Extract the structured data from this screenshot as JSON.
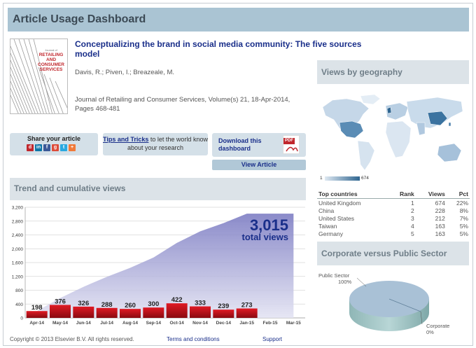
{
  "header": {
    "title": "Article Usage Dashboard"
  },
  "article": {
    "title": "Conceptualizing the brand in social media community: The five sources model",
    "authors": "Davis, R.; Piven, I.; Breazeale, M.",
    "journal": "Journal of Retailing and Consumer Services, Volume(s) 21, 18-Apr-2014, Pages 468-481",
    "cover_text_line1": "Journal of",
    "cover_text_line2": "RETAILING AND CONSUMER SERVICES"
  },
  "share": {
    "label": "Share your article",
    "icons": [
      "delicious-icon",
      "linkedin-icon",
      "facebook-icon",
      "googleplus-icon",
      "twitter-icon",
      "more-share-icon"
    ]
  },
  "tips": {
    "link": "Tips and Tricks",
    "rest": " to let the world know about your research"
  },
  "download": {
    "label": "Download this dashboard",
    "pdf_tag": "PDF"
  },
  "view_article": {
    "label": "View Article"
  },
  "trend": {
    "section_title": "Trend and cumulative views",
    "total_number": "3,015",
    "total_label": "total views"
  },
  "chart_data": {
    "type": "bar",
    "categories": [
      "Apr-14",
      "May-14",
      "Jun-14",
      "Jul-14",
      "Aug-14",
      "Sep-14",
      "Oct-14",
      "Nov-14",
      "Dec-14",
      "Jan-15",
      "Feb-15",
      "Mar-15"
    ],
    "series": [
      {
        "values": [
          198,
          376,
          326,
          288,
          260,
          300,
          422,
          333,
          239,
          273,
          0,
          0
        ]
      },
      {
        "values": [
          198,
          574,
          900,
          1188,
          1448,
          1748,
          2170,
          2503,
          2742,
          3015,
          3015,
          3015
        ]
      }
    ],
    "ylim": [
      0,
      3200
    ],
    "yticks": [
      "0",
      "400",
      "800",
      "1,200",
      "1,600",
      "2,000",
      "2,400",
      "2,800",
      "3,200"
    ],
    "grid": true
  },
  "geography": {
    "section_title": "Views by geography",
    "legend_min": "1",
    "legend_max": "674",
    "table_headers": [
      "Top countries",
      "Rank",
      "Views",
      "Pct"
    ],
    "rows": [
      [
        "United Kingdom",
        "1",
        "674",
        "22%"
      ],
      [
        "China",
        "2",
        "228",
        "8%"
      ],
      [
        "United States",
        "3",
        "212",
        "7%"
      ],
      [
        "Taiwan",
        "4",
        "163",
        "5%"
      ],
      [
        "Germany",
        "5",
        "163",
        "5%"
      ]
    ]
  },
  "sector": {
    "section_title": "Corporate versus Public Sector",
    "public_label": "Public Sector",
    "public_pct": "100%",
    "corporate_label": "Corporate",
    "corporate_pct": "0%",
    "slices": [
      {
        "label": "Public Sector",
        "value": 100
      },
      {
        "label": "Corporate",
        "value": 0
      }
    ]
  },
  "footer": {
    "copyright": "Copyright © 2013 Elsevier B.V. All rights reserved.",
    "terms": "Terms and conditions",
    "support": "Support"
  },
  "colors": {
    "header_bg": "#aac4d3",
    "title_blue": "#1a2f8a",
    "bar_red": "#c0101a",
    "area_purple": "#7f7fc4",
    "map_dark": "#2f6590"
  }
}
